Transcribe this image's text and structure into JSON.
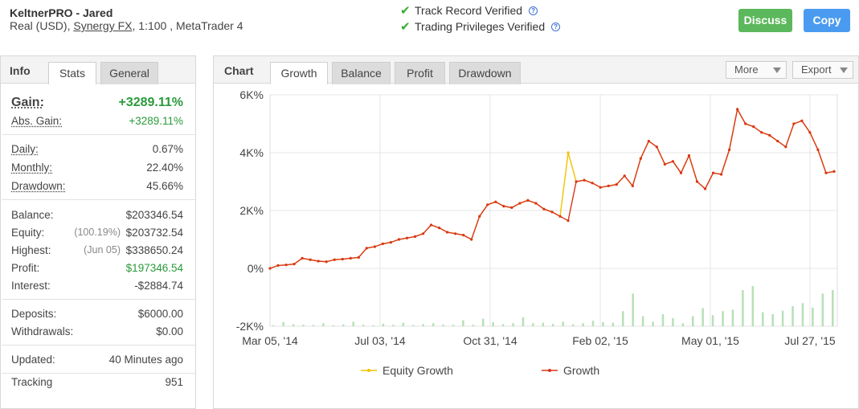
{
  "header": {
    "title": "KeltnerPRO - Jared",
    "account_type": "Real (USD),",
    "broker": "Synergy FX",
    "leverage": ", 1:100 , MetaTrader 4",
    "verified_1": "Track Record Verified",
    "verified_2": "Trading Privileges Verified",
    "discuss_label": "Discuss",
    "copy_label": "Copy"
  },
  "left_tabs": {
    "title": "Info",
    "tab_stats": "Stats",
    "tab_general": "General"
  },
  "stats": {
    "gain_label": "Gain:",
    "gain_value": "+3289.11%",
    "abs_gain_label": "Abs. Gain:",
    "abs_gain_value": "+3289.11%",
    "daily_label": "Daily:",
    "daily_value": "0.67%",
    "monthly_label": "Monthly:",
    "monthly_value": "22.40%",
    "drawdown_label": "Drawdown:",
    "drawdown_value": "45.66%",
    "balance_label": "Balance:",
    "balance_value": "$203346.54",
    "equity_label": "Equity:",
    "equity_note": "(100.19%)",
    "equity_value": "$203732.54",
    "highest_label": "Highest:",
    "highest_note": "(Jun 05)",
    "highest_value": "$338650.24",
    "profit_label": "Profit:",
    "profit_value": "$197346.54",
    "interest_label": "Interest:",
    "interest_value": "-$2884.74",
    "deposits_label": "Deposits:",
    "deposits_value": "$6000.00",
    "withdrawals_label": "Withdrawals:",
    "withdrawals_value": "$0.00",
    "updated_label": "Updated:",
    "updated_value": "40 Minutes ago",
    "tracking_label": "Tracking",
    "tracking_value": "951"
  },
  "chart_tabs": {
    "title": "Chart",
    "growth": "Growth",
    "balance": "Balance",
    "profit": "Profit",
    "drawdown": "Drawdown",
    "more": "More",
    "export": "Export"
  },
  "colors": {
    "growth": "#d9361c",
    "equity": "#f2c200",
    "bars": "#b7e0b7",
    "grid": "#e4e4e4",
    "positive": "#2a9a3a"
  },
  "chart_data": {
    "type": "line",
    "yticks": [
      "6K%",
      "4K%",
      "2K%",
      "0%",
      "-2K%"
    ],
    "ylim": [
      -2000,
      6000
    ],
    "xticks": [
      "Mar 05, '14",
      "Jul 03, '14",
      "Oct 31, '14",
      "Feb 02, '15",
      "May 01, '15",
      "Jul 27, '15"
    ],
    "grid": true,
    "legend_position": "bottom",
    "series": [
      {
        "name": "Growth",
        "values": [
          0,
          100,
          120,
          150,
          350,
          300,
          250,
          230,
          300,
          320,
          350,
          380,
          700,
          750,
          850,
          900,
          1000,
          1050,
          1100,
          1200,
          1500,
          1400,
          1250,
          1200,
          1150,
          1000,
          1800,
          2200,
          2300,
          2150,
          2100,
          2250,
          2350,
          2250,
          2050,
          1950,
          1800,
          1650,
          3000,
          3050,
          2950,
          2800,
          2850,
          2900,
          3200,
          2850,
          3800,
          4400,
          4200,
          3600,
          3700,
          3300,
          3900,
          3000,
          2750,
          3300,
          3250,
          4100,
          5500,
          5000,
          4900,
          4700,
          4600,
          4400,
          4200,
          5000,
          5100,
          4700,
          4100,
          3300,
          3350
        ]
      },
      {
        "name": "Equity Growth",
        "values": [
          0,
          100,
          120,
          150,
          350,
          300,
          250,
          230,
          300,
          320,
          350,
          380,
          700,
          750,
          850,
          900,
          1000,
          1050,
          1100,
          1200,
          1500,
          1400,
          1250,
          1200,
          1150,
          1000,
          1800,
          2200,
          2300,
          2150,
          2100,
          2250,
          2350,
          2250,
          2050,
          1950,
          1800,
          4000,
          3000,
          3050,
          2950,
          2800,
          2850,
          2900,
          3200,
          2850,
          3800,
          4400,
          4200,
          3600,
          3700,
          3300,
          3900,
          3000,
          2750,
          3300,
          3250,
          4100,
          5500,
          5000,
          4900,
          4700,
          4600,
          4400,
          4200,
          5000,
          5100,
          4700,
          4100,
          3300,
          3350
        ]
      }
    ],
    "bars": [
      20,
      80,
      40,
      30,
      25,
      60,
      20,
      35,
      90,
      30,
      20,
      50,
      30,
      70,
      25,
      40,
      60,
      35,
      30,
      120,
      30,
      150,
      80,
      40,
      60,
      180,
      60,
      70,
      45,
      90,
      40,
      60,
      110,
      80,
      70,
      300,
      650,
      200,
      90,
      240,
      160,
      60,
      200,
      360,
      220,
      300,
      330,
      720,
      800,
      280,
      240,
      310,
      400,
      460,
      370,
      650,
      720
    ]
  }
}
